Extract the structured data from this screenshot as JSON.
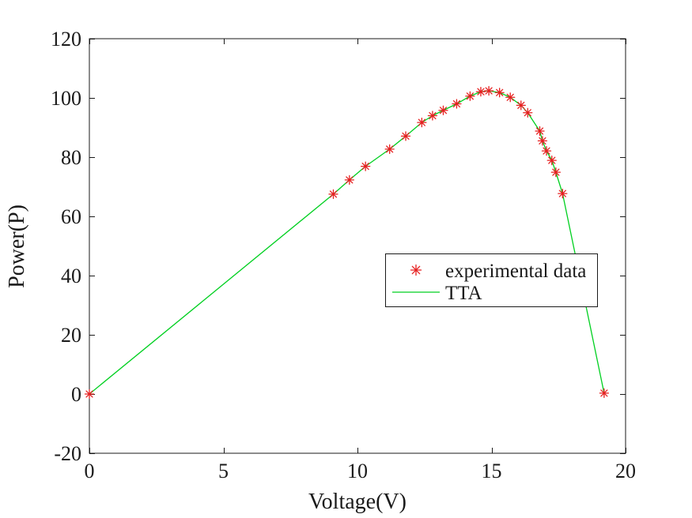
{
  "figure": {
    "background": "#ffffff"
  },
  "colors": {
    "axis": "#1a1a1a",
    "experimental_marker": "#e62020",
    "tta_line": "#00d020",
    "legend_background": "#ffffff"
  },
  "chart_data": {
    "type": "scatter+line",
    "title": "",
    "xlabel": "Voltage(V)",
    "ylabel": "Power(P)",
    "xlim": [
      0,
      20
    ],
    "ylim": [
      -20,
      120
    ],
    "xticks": [
      0,
      5,
      10,
      15,
      20
    ],
    "yticks": [
      -20,
      0,
      20,
      40,
      60,
      80,
      100,
      120
    ],
    "grid": false,
    "x": [
      0,
      9.1,
      9.7,
      10.3,
      11.2,
      11.8,
      12.4,
      12.8,
      13.2,
      13.7,
      14.2,
      14.6,
      14.9,
      15.3,
      15.7,
      16.1,
      16.35,
      16.8,
      16.9,
      17.05,
      17.25,
      17.4,
      17.65,
      19.2
    ],
    "y": [
      0,
      67.5,
      72.3,
      76.9,
      82.7,
      87.1,
      91.7,
      94.0,
      95.8,
      98.0,
      100.6,
      102.1,
      102.4,
      101.8,
      100.2,
      97.5,
      95.0,
      88.8,
      85.5,
      82.1,
      78.9,
      74.9,
      67.7,
      0.3
    ],
    "series": [
      {
        "name": "experimental data",
        "type": "scatter",
        "marker": "asterisk",
        "color": "#e62020"
      },
      {
        "name": "TTA",
        "type": "line",
        "color": "#00d020"
      }
    ],
    "legend": {
      "position": "inside-lower-right",
      "entries": [
        {
          "label": "experimental data",
          "symbol": "asterisk-marker",
          "color": "#e62020"
        },
        {
          "label": "TTA",
          "symbol": "line-sample",
          "color": "#00d020"
        }
      ]
    }
  }
}
